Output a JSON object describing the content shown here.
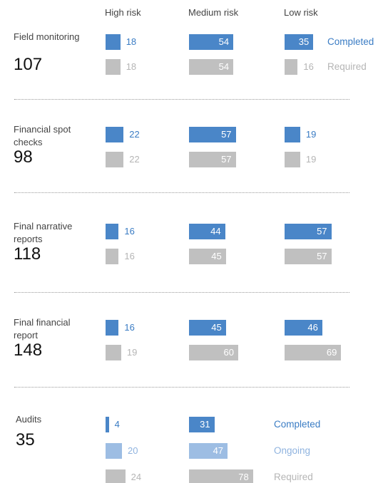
{
  "chart_data": {
    "type": "bar",
    "columns": [
      "High risk",
      "Medium risk",
      "Low risk"
    ],
    "groups": [
      {
        "label": "Field monitoring",
        "total": 107,
        "series": [
          {
            "name": "Completed",
            "color": "#4a86c8",
            "text_color": "#3a7cc4",
            "values": [
              18,
              54,
              35
            ]
          },
          {
            "name": "Required",
            "color": "#c0c0c0",
            "text_color": "#b5b5b5",
            "values": [
              18,
              54,
              16
            ]
          }
        ]
      },
      {
        "label": "Financial spot checks",
        "total": 98,
        "series": [
          {
            "color": "#4a86c8",
            "text_color": "#3a7cc4",
            "values": [
              22,
              57,
              19
            ]
          },
          {
            "color": "#c0c0c0",
            "text_color": "#b5b5b5",
            "values": [
              22,
              57,
              19
            ]
          }
        ]
      },
      {
        "label": "Final narrative reports",
        "total": 118,
        "series": [
          {
            "color": "#4a86c8",
            "text_color": "#3a7cc4",
            "values": [
              16,
              44,
              57
            ]
          },
          {
            "color": "#c0c0c0",
            "text_color": "#b5b5b5",
            "values": [
              16,
              45,
              57
            ]
          }
        ]
      },
      {
        "label": "Final financial report",
        "total": 148,
        "series": [
          {
            "color": "#4a86c8",
            "text_color": "#3a7cc4",
            "values": [
              16,
              45,
              46
            ]
          },
          {
            "color": "#c0c0c0",
            "text_color": "#b5b5b5",
            "values": [
              19,
              60,
              69
            ]
          }
        ]
      },
      {
        "label": "Audits",
        "total": 35,
        "series": [
          {
            "name": "Completed",
            "color": "#4a86c8",
            "text_color": "#3a7cc4",
            "values": [
              4,
              31
            ]
          },
          {
            "name": "Ongoing",
            "color": "#9dbde3",
            "text_color": "#8fb3df",
            "values": [
              20,
              47
            ]
          },
          {
            "name": "Required",
            "color": "#c0c0c0",
            "text_color": "#b5b5b5",
            "values": [
              24,
              78
            ]
          }
        ]
      }
    ]
  }
}
